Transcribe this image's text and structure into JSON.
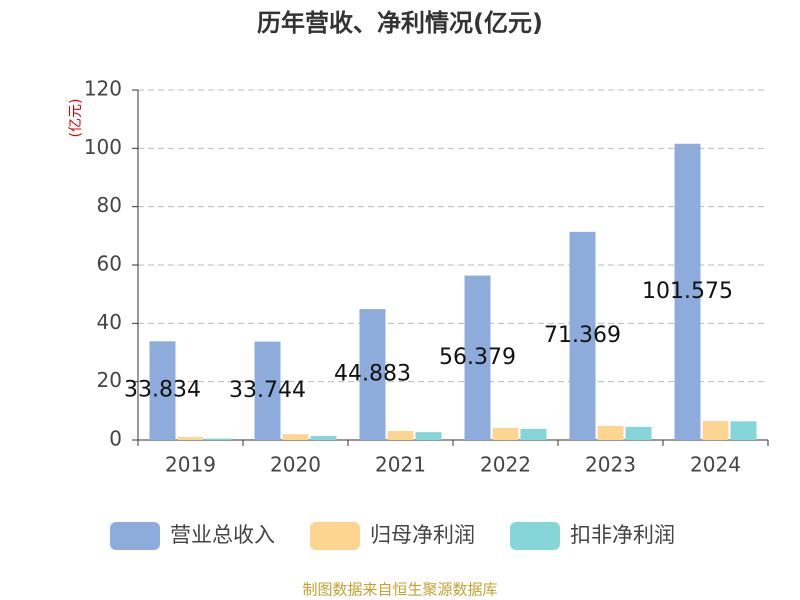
{
  "chart_data": {
    "type": "bar",
    "title": "历年营收、净利情况(亿元)",
    "y_label": "(亿元)",
    "categories": [
      "2019",
      "2020",
      "2021",
      "2022",
      "2023",
      "2024"
    ],
    "series": [
      {
        "name": "营业总收入",
        "color": "#8eacdb",
        "values": [
          33.834,
          33.744,
          44.883,
          56.379,
          71.369,
          101.575
        ]
      },
      {
        "name": "归母净利润",
        "color": "#fdd591",
        "values": [
          1.0,
          2.0,
          3.1,
          4.1,
          4.8,
          6.5
        ]
      },
      {
        "name": "扣非净利润",
        "color": "#86d5d8",
        "values": [
          0.5,
          1.4,
          2.7,
          3.8,
          4.5,
          6.4
        ]
      }
    ],
    "ylim": [
      0,
      120
    ],
    "yticks": [
      0,
      20,
      40,
      60,
      80,
      100,
      120
    ],
    "grid": true,
    "source": "制图数据来自恒生聚源数据库"
  }
}
